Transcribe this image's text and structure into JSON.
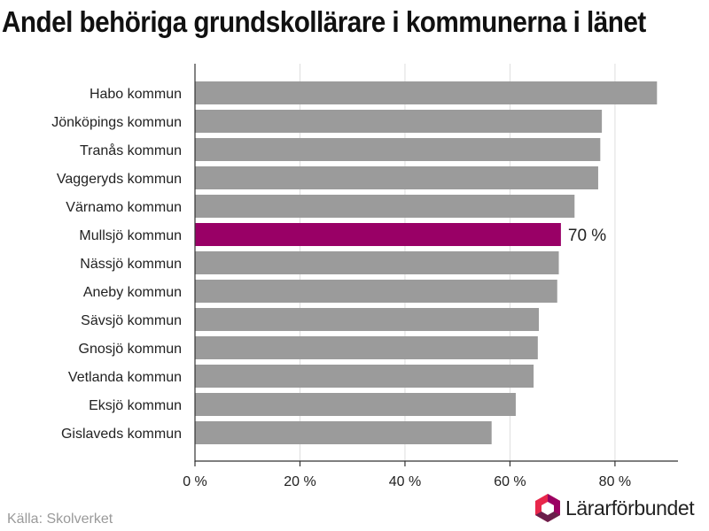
{
  "title": "Andel behöriga grundskollärare i kommunerna i länet",
  "source": "Källa: Skolverket",
  "logo": {
    "name": "Lärarförbundet",
    "colors": [
      "#e8274b",
      "#9b0062",
      "#6b1e4b"
    ]
  },
  "colors": {
    "bar": "#9b9b9b",
    "highlight": "#990066",
    "grid": "#dedede",
    "axis": "#333333"
  },
  "chart_data": {
    "type": "bar",
    "orientation": "horizontal",
    "categories": [
      "Habo kommun",
      "Jönköpings kommun",
      "Tranås kommun",
      "Vaggeryds kommun",
      "Värnamo kommun",
      "Mullsjö kommun",
      "Nässjö kommun",
      "Aneby kommun",
      "Sävsjö kommun",
      "Gnosjö kommun",
      "Vetlanda kommun",
      "Eksjö kommun",
      "Gislaveds kommun"
    ],
    "values": [
      88,
      77.5,
      77.2,
      76.8,
      72.3,
      69.7,
      69.3,
      69,
      65.5,
      65.3,
      64.5,
      61.1,
      56.5
    ],
    "highlight_index": 5,
    "highlight_label": "70 %",
    "xlim": [
      0,
      92
    ],
    "xticks": [
      0,
      20,
      40,
      60,
      80
    ],
    "xtick_labels": [
      "0 %",
      "20 %",
      "40 %",
      "60 %",
      "80 %"
    ],
    "grid": true,
    "xlabel": "",
    "ylabel": ""
  }
}
